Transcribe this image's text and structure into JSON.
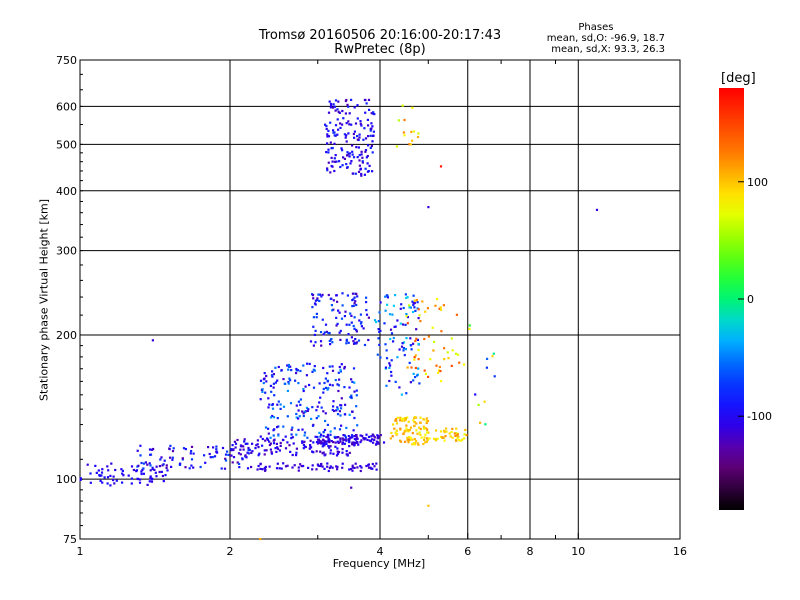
{
  "header": {
    "title_line1": "Tromsø 20160506 20:16:00-20:17:43",
    "title_line2": "RwPretec (8p)",
    "phase_title": "Phases",
    "phase_line1": "mean, sd,O: -96.9, 18.7",
    "phase_line2": "mean, sd,X: 93.3, 26.3"
  },
  "colorbar": {
    "unit_label": "[deg]",
    "min": -180,
    "max": 180,
    "ticks": [
      {
        "value": 100,
        "label": "100"
      },
      {
        "value": 0,
        "label": "0"
      },
      {
        "value": -100,
        "label": "-100"
      }
    ]
  },
  "chart_data": {
    "type": "scatter",
    "xlabel": "Frequency [MHz]",
    "ylabel": "Stationary phase Virtual Height [km]",
    "xscale": "log",
    "yscale": "log",
    "xlim": [
      1,
      16
    ],
    "ylim": [
      75,
      750
    ],
    "grid": true,
    "x_ticks": [
      {
        "value": 1,
        "label": "1",
        "grid": false
      },
      {
        "value": 2,
        "label": "2",
        "grid": true
      },
      {
        "value": 4,
        "label": "4",
        "grid": true
      },
      {
        "value": 6,
        "label": "6",
        "grid": true
      },
      {
        "value": 8,
        "label": "8",
        "grid": true
      },
      {
        "value": 10,
        "label": "10",
        "grid": true
      },
      {
        "value": 16,
        "label": "16",
        "grid": false
      }
    ],
    "x_minor": [
      3,
      5,
      7,
      9
    ],
    "y_ticks": [
      {
        "value": 75,
        "label": "75"
      },
      {
        "value": 100,
        "label": "100"
      },
      {
        "value": 200,
        "label": "200"
      },
      {
        "value": 300,
        "label": "300"
      },
      {
        "value": 400,
        "label": "400"
      },
      {
        "value": 500,
        "label": "500"
      },
      {
        "value": 600,
        "label": "600"
      },
      {
        "value": 750,
        "label": "750"
      }
    ],
    "color_key": "phase [deg]",
    "clusters": [
      {
        "x": [
          1.0,
          1.5
        ],
        "y": [
          97,
          108
        ],
        "phase": [
          -115,
          -90
        ],
        "n": 70
      },
      {
        "x": [
          1.3,
          2.2
        ],
        "y": [
          105,
          118
        ],
        "phase": [
          -130,
          -60
        ],
        "n": 90
      },
      {
        "x": [
          2.0,
          3.6
        ],
        "y": [
          112,
          122
        ],
        "phase": [
          -125,
          -90
        ],
        "n": 130
      },
      {
        "x": [
          2.2,
          4.0
        ],
        "y": [
          104,
          108
        ],
        "phase": [
          -120,
          -100
        ],
        "n": 70
      },
      {
        "x": [
          2.3,
          3.6
        ],
        "y": [
          122,
          175
        ],
        "phase": [
          -120,
          -40
        ],
        "n": 220
      },
      {
        "x": [
          3.0,
          4.1
        ],
        "y": [
          118,
          124
        ],
        "phase": [
          -125,
          -95
        ],
        "n": 90
      },
      {
        "x": [
          2.9,
          3.8
        ],
        "y": [
          190,
          245
        ],
        "phase": [
          -125,
          -60
        ],
        "n": 110
      },
      {
        "x": [
          3.9,
          4.8
        ],
        "y": [
          150,
          245
        ],
        "phase": [
          -120,
          -20
        ],
        "n": 100
      },
      {
        "x": [
          4.2,
          5.0
        ],
        "y": [
          118,
          135
        ],
        "phase": [
          80,
          120
        ],
        "n": 90
      },
      {
        "x": [
          4.8,
          6.0
        ],
        "y": [
          120,
          128
        ],
        "phase": [
          70,
          120
        ],
        "n": 50
      },
      {
        "x": [
          4.5,
          5.9
        ],
        "y": [
          160,
          240
        ],
        "phase": [
          60,
          150
        ],
        "n": 55
      },
      {
        "x": [
          3.1,
          3.9
        ],
        "y": [
          430,
          620
        ],
        "phase": [
          -125,
          -80
        ],
        "n": 170
      },
      {
        "x": [
          4.3,
          4.8
        ],
        "y": [
          480,
          620
        ],
        "phase": [
          60,
          130
        ],
        "n": 14
      },
      {
        "x": [
          6.0,
          7.0
        ],
        "y": [
          110,
          230
        ],
        "phase": [
          -100,
          140
        ],
        "n": 12
      }
    ],
    "points": [
      {
        "x": 10.9,
        "y": 365,
        "phase": -110
      },
      {
        "x": 5.0,
        "y": 370,
        "phase": -110
      },
      {
        "x": 1.4,
        "y": 195,
        "phase": -110
      },
      {
        "x": 5.3,
        "y": 450,
        "phase": 170
      },
      {
        "x": 5.0,
        "y": 88,
        "phase": 100
      },
      {
        "x": 3.5,
        "y": 96,
        "phase": -120
      },
      {
        "x": 2.3,
        "y": 75,
        "phase": 110
      }
    ]
  }
}
